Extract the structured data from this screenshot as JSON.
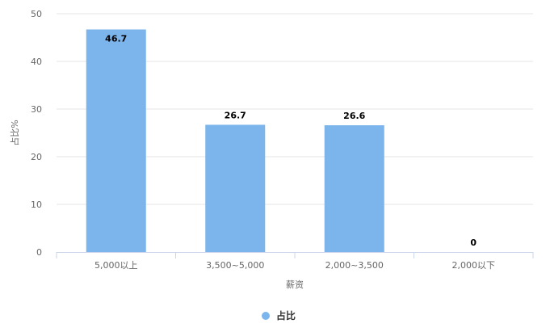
{
  "chart_data": {
    "type": "bar",
    "categories": [
      "5,000以上",
      "3,500~5,000",
      "2,000~3,500",
      "2,000以下"
    ],
    "series": [
      {
        "name": "占比",
        "values": [
          46.7,
          26.7,
          26.6,
          0
        ]
      }
    ],
    "data_labels": [
      "46.7",
      "26.7",
      "26.6",
      "0"
    ],
    "xlabel": "薪资",
    "ylabel": "占比%",
    "ylim": [
      0,
      50
    ],
    "yticks": [
      "0",
      "10",
      "20",
      "30",
      "40",
      "50"
    ],
    "grid": "horizontal",
    "legend_position": "bottom-center",
    "colors": {
      "bar": "#7cb5ec",
      "grid": "#e6e6e6",
      "axis_line": "#ccd6eb",
      "tick_text": "#666666",
      "label_text": "#000000"
    }
  }
}
